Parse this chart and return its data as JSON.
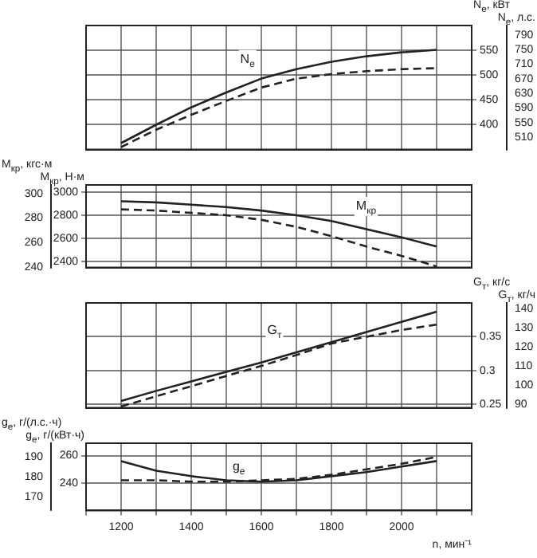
{
  "chart_data": [
    {
      "type": "line",
      "ylabel": "N$_{e}$, кВт",
      "y2label": "N$_{e}$, л.с.",
      "x": [
        1200,
        1300,
        1400,
        1500,
        1600,
        1700,
        1800,
        1900,
        2000,
        2100
      ],
      "xlim": [
        1100,
        2200
      ],
      "xticks": [
        {
          "value": 1100,
          "label": null
        },
        1200,
        {
          "value": 1300,
          "label": null
        },
        1400,
        {
          "value": 1500,
          "label": null
        },
        1600,
        {
          "value": 1700,
          "label": null
        },
        1800,
        {
          "value": 1900,
          "label": null
        },
        2000,
        {
          "value": 2100,
          "label": null
        },
        {
          "value": 2200,
          "label": null
        }
      ],
      "ylim": [
        350,
        600
      ],
      "yticks": [
        400,
        450,
        500,
        550
      ],
      "y2lim": [
        476,
        816
      ],
      "y2ticks": [
        510,
        550,
        590,
        630,
        670,
        710,
        750,
        790
      ],
      "tick_labels": "y",
      "grid": true,
      "legend": false,
      "marker": "none",
      "series": [
        {
          "color": "#222222",
          "line_style": "solid",
          "values": [
            363,
            400,
            435,
            465,
            493,
            512,
            527,
            538,
            546,
            551
          ]
        },
        {
          "color": "#222222",
          "line_style": "dashed",
          "values": [
            355,
            390,
            420,
            448,
            475,
            493,
            502,
            508,
            512,
            514
          ]
        }
      ],
      "annotations": [
        "N$_{e}$"
      ]
    },
    {
      "type": "line",
      "ylabel": "M$_{кр}$, Н·м",
      "y2label": "M$_{кр}$, кгс·м",
      "x": [
        1200,
        1300,
        1400,
        1500,
        1600,
        1700,
        1800,
        1900,
        2000,
        2100
      ],
      "xlim": [
        1100,
        2200
      ],
      "xticks": [
        {
          "value": 1100,
          "label": null
        },
        1200,
        {
          "value": 1300,
          "label": null
        },
        1400,
        {
          "value": 1500,
          "label": null
        },
        1600,
        {
          "value": 1700,
          "label": null
        },
        1800,
        {
          "value": 1900,
          "label": null
        },
        2000,
        {
          "value": 2100,
          "label": null
        },
        {
          "value": 2200,
          "label": null
        }
      ],
      "ylim": [
        2350,
        3060
      ],
      "yticks": [
        2400,
        2600,
        2800,
        3000
      ],
      "y2lim": [
        239.5,
        307
      ],
      "y2ticks": [
        240,
        260,
        280,
        300
      ],
      "tick_labels": "y",
      "grid": true,
      "legend": false,
      "marker": "none",
      "series": [
        {
          "color": "#222222",
          "line_style": "solid",
          "values": [
            2920,
            2910,
            2890,
            2870,
            2840,
            2800,
            2750,
            2680,
            2610,
            2530
          ]
        },
        {
          "color": "#222222",
          "line_style": "dashed",
          "values": [
            2850,
            2840,
            2820,
            2800,
            2760,
            2700,
            2620,
            2530,
            2450,
            2360
          ]
        }
      ],
      "annotations": [
        "M$_{кр}$"
      ]
    },
    {
      "type": "line",
      "ylabel": "G$_{т}$, кг/с",
      "y2label": "G$_{т}$, кг/ч",
      "x": [
        1200,
        1300,
        1400,
        1500,
        1600,
        1700,
        1800,
        1900,
        2000,
        2100
      ],
      "xlim": [
        1100,
        2200
      ],
      "xticks": [
        {
          "value": 1100,
          "label": null
        },
        1200,
        {
          "value": 1300,
          "label": null
        },
        1400,
        {
          "value": 1500,
          "label": null
        },
        1600,
        {
          "value": 1700,
          "label": null
        },
        1800,
        {
          "value": 1900,
          "label": null
        },
        2000,
        {
          "value": 2100,
          "label": null
        },
        {
          "value": 2200,
          "label": null
        }
      ],
      "ylim": [
        0.245,
        0.4
      ],
      "yticks": [
        0.25,
        0.3,
        0.35
      ],
      "y2lim": [
        88.2,
        143
      ],
      "y2ticks": [
        90,
        100,
        110,
        120,
        130,
        140
      ],
      "tick_labels": "y",
      "grid": true,
      "legend": false,
      "marker": "none",
      "series": [
        {
          "color": "#222222",
          "line_style": "solid",
          "values": [
            0.255,
            0.27,
            0.284,
            0.298,
            0.312,
            0.327,
            0.342,
            0.357,
            0.372,
            0.387
          ]
        },
        {
          "color": "#222222",
          "line_style": "dashed",
          "values": [
            0.247,
            0.262,
            0.277,
            0.292,
            0.307,
            0.323,
            0.34,
            0.35,
            0.36,
            0.368
          ]
        }
      ],
      "annotations": [
        "G$_{т}$"
      ]
    },
    {
      "type": "line",
      "xlabel": "n, мин⁻¹",
      "ylabel": "g$_{e}$, г/(кВт·ч)",
      "y2label": "g$_{e}$, г/(л.с.·ч)",
      "x": [
        1200,
        1300,
        1400,
        1500,
        1600,
        1700,
        1800,
        1900,
        2000,
        2100
      ],
      "xlim": [
        1100,
        2200
      ],
      "xticks": [
        {
          "value": 1100,
          "label": null
        },
        1200,
        {
          "value": 1300,
          "label": null
        },
        1400,
        {
          "value": 1500,
          "label": null
        },
        1600,
        {
          "value": 1700,
          "label": null
        },
        1800,
        {
          "value": 1900,
          "label": null
        },
        2000,
        {
          "value": 2100,
          "label": null
        },
        {
          "value": 2200,
          "label": null
        }
      ],
      "ylim": [
        220,
        269
      ],
      "yticks": [
        240,
        260
      ],
      "y2lim": [
        163,
        197
      ],
      "y2ticks": [
        170,
        180,
        190
      ],
      "grid": true,
      "legend": false,
      "marker": "none",
      "series": [
        {
          "color": "#222222",
          "line_style": "solid",
          "values": [
            256,
            249,
            245,
            242,
            241,
            242,
            245,
            248,
            252,
            256
          ]
        },
        {
          "color": "#222222",
          "line_style": "dashed",
          "values": [
            242,
            242,
            241,
            241,
            242,
            243,
            246,
            250,
            254,
            259
          ]
        }
      ],
      "annotations": [
        "g$_{e}$"
      ]
    }
  ]
}
